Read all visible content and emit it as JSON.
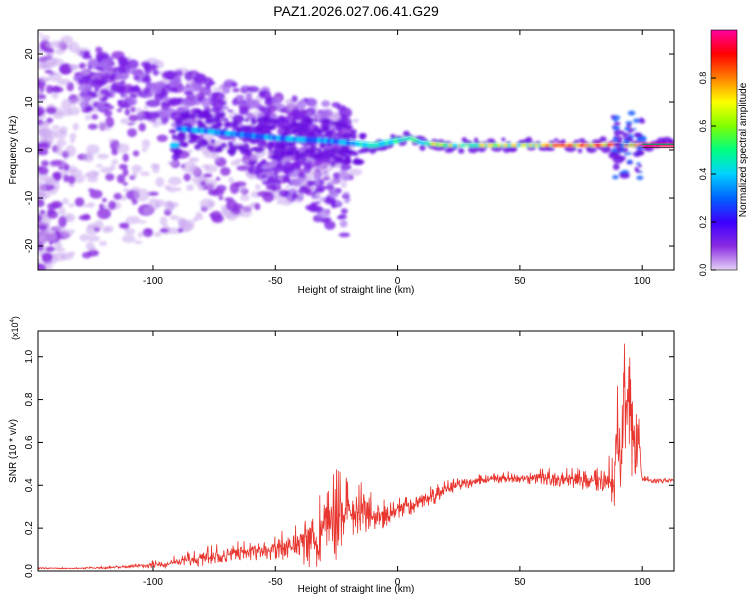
{
  "title": "PAZ1.2026.027.06.41.G29",
  "chart_data": [
    {
      "type": "heatmap",
      "xlabel": "Height of straight line (km)",
      "ylabel": "Frequency (Hz)",
      "xlim": [
        -147,
        113
      ],
      "ylim": [
        -25,
        25
      ],
      "xticks": [
        -100,
        -50,
        0,
        50,
        100
      ],
      "yticks": [
        -20,
        -10,
        0,
        10,
        20
      ],
      "xtick_labels": [
        "-100",
        "-50",
        "0",
        "50",
        "100"
      ],
      "ytick_labels": [
        "-20",
        "-10",
        "0",
        "10",
        "20"
      ],
      "colorbar": {
        "label": "Normalized spectral amplitude",
        "range": [
          0,
          1
        ],
        "ticks": [
          0.0,
          0.2,
          0.4,
          0.6,
          0.8
        ],
        "tick_labels": [
          "0.0",
          "0.2",
          "0.4",
          "0.6",
          "0.8"
        ],
        "colormap": [
          "#e6d2f5",
          "#8a2be2",
          "#3c00ff",
          "#0064ff",
          "#00d2ff",
          "#00ff80",
          "#80ff00",
          "#ffff00",
          "#ff8000",
          "#ff0000",
          "#ff00a0"
        ]
      },
      "ridge": {
        "description": "dominant frequency track",
        "x": [
          -90,
          -80,
          -70,
          -60,
          -50,
          -40,
          -30,
          -20,
          -10,
          -5,
          0,
          5,
          10,
          20,
          30,
          40,
          50,
          60,
          70,
          80,
          90,
          95,
          100,
          113
        ],
        "y": [
          4.5,
          4,
          3.5,
          3,
          2.5,
          2.2,
          2,
          1.5,
          1,
          1.5,
          2,
          2.5,
          1.5,
          1,
          1,
          1,
          1,
          1,
          1,
          1,
          1.2,
          1,
          1,
          1
        ]
      }
    },
    {
      "type": "line",
      "xlabel": "Height of straight line (km)",
      "ylabel": "SNR (10 * v/v)",
      "yscale_label": "(x10",
      "yscale_exp": "4",
      "yscale_close": ")",
      "xlim": [
        -147,
        113
      ],
      "ylim": [
        0,
        1.12
      ],
      "xticks": [
        -100,
        -50,
        0,
        50,
        100
      ],
      "yticks": [
        0.0,
        0.2,
        0.4,
        0.6,
        0.8,
        1.0
      ],
      "xtick_labels": [
        "-100",
        "-50",
        "0",
        "50",
        "100"
      ],
      "ytick_labels": [
        "0.0",
        "0.2",
        "0.4",
        "0.6",
        "0.8",
        "1.0"
      ],
      "color": "#e8352e",
      "series": [
        {
          "name": "SNR",
          "x": [
            -147,
            -130,
            -120,
            -110,
            -100,
            -90,
            -80,
            -70,
            -60,
            -50,
            -40,
            -35,
            -30,
            -25,
            -20,
            -15,
            -10,
            -5,
            0,
            5,
            10,
            15,
            20,
            25,
            30,
            40,
            50,
            60,
            70,
            80,
            85,
            88,
            90,
            92,
            94,
            95,
            96,
            98,
            100,
            105,
            113
          ],
          "envelope": [
            0.015,
            0.015,
            0.02,
            0.025,
            0.04,
            0.06,
            0.09,
            0.11,
            0.12,
            0.14,
            0.18,
            0.25,
            0.33,
            0.35,
            0.36,
            0.38,
            0.3,
            0.3,
            0.32,
            0.33,
            0.36,
            0.38,
            0.41,
            0.42,
            0.43,
            0.45,
            0.45,
            0.46,
            0.46,
            0.45,
            0.45,
            0.5,
            0.72,
            0.85,
            1.1,
            1.0,
            0.8,
            0.78,
            0.44,
            0.43,
            0.43
          ],
          "noise": [
            0.005,
            0.005,
            0.01,
            0.01,
            0.03,
            0.04,
            0.07,
            0.07,
            0.07,
            0.09,
            0.12,
            0.28,
            0.3,
            0.32,
            0.2,
            0.2,
            0.12,
            0.1,
            0.08,
            0.08,
            0.07,
            0.07,
            0.05,
            0.05,
            0.04,
            0.04,
            0.04,
            0.06,
            0.07,
            0.08,
            0.08,
            0.25,
            0.45,
            0.45,
            0.55,
            0.5,
            0.4,
            0.3,
            0.02,
            0.02,
            0.02
          ]
        }
      ]
    }
  ]
}
